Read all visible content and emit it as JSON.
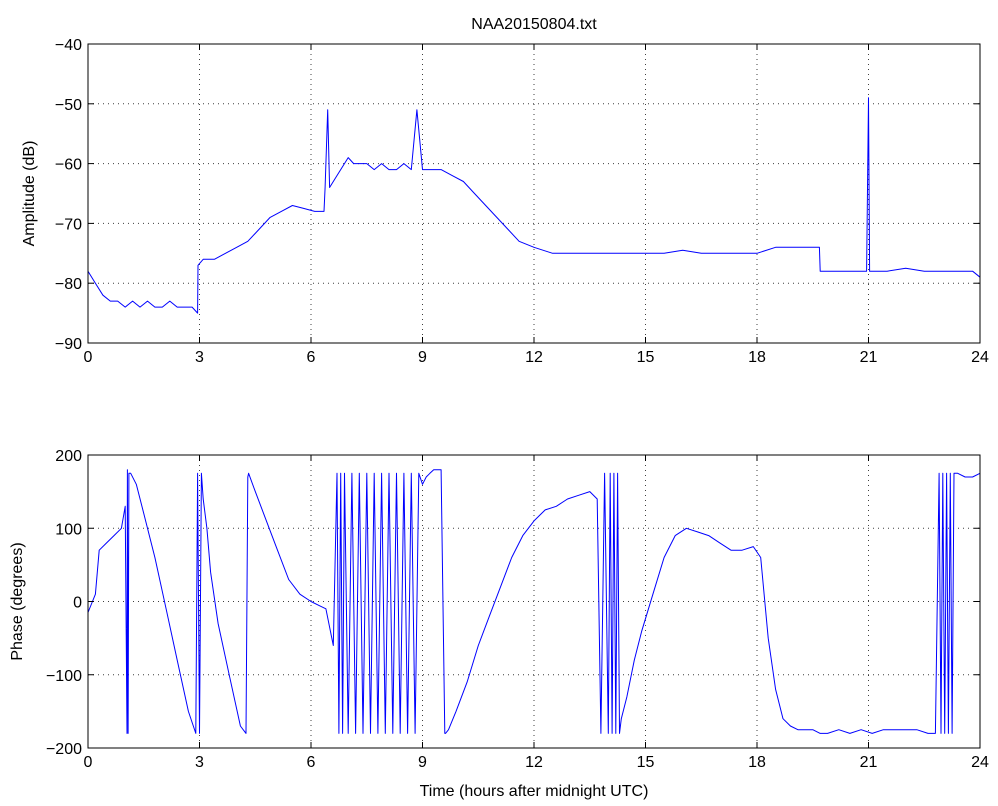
{
  "chart_data": [
    {
      "type": "line",
      "title": "NAA20150804.txt",
      "xlabel": "",
      "ylabel": "Amplitude (dB)",
      "xlim": [
        0,
        24
      ],
      "ylim": [
        -90,
        -40
      ],
      "xticks": [
        0,
        3,
        6,
        9,
        12,
        15,
        18,
        21,
        24
      ],
      "yticks": [
        -90,
        -80,
        -70,
        -60,
        -50,
        -40
      ],
      "xtick_labels": [
        "0",
        "3",
        "6",
        "9",
        "12",
        "15",
        "18",
        "21",
        "24"
      ],
      "ytick_labels": [
        "−90",
        "−80",
        "−70",
        "−60",
        "−50",
        "−40"
      ],
      "grid": true,
      "series_color": "#0000ff",
      "x": [
        0,
        0.2,
        0.4,
        0.6,
        0.8,
        1.0,
        1.2,
        1.4,
        1.6,
        1.8,
        2.0,
        2.2,
        2.4,
        2.6,
        2.8,
        2.95,
        2.96,
        3.1,
        3.4,
        3.7,
        4.0,
        4.3,
        4.6,
        4.9,
        5.2,
        5.5,
        5.8,
        6.1,
        6.35,
        6.38,
        6.45,
        6.5,
        6.6,
        6.8,
        7.0,
        7.15,
        7.3,
        7.5,
        7.7,
        7.9,
        8.1,
        8.3,
        8.5,
        8.7,
        8.85,
        9.0,
        9.2,
        9.5,
        9.8,
        10.1,
        10.4,
        10.7,
        11.0,
        11.3,
        11.6,
        12.0,
        12.5,
        13.0,
        13.5,
        14.0,
        14.5,
        15.0,
        15.5,
        16.0,
        16.5,
        17.0,
        17.5,
        18.0,
        18.5,
        19.0,
        19.5,
        19.68,
        19.7,
        20.0,
        20.5,
        20.95,
        21.0,
        21.03,
        21.1,
        21.5,
        22.0,
        22.5,
        23.0,
        23.5,
        23.8,
        24.0
      ],
      "y": [
        -78,
        -80,
        -82,
        -83,
        -83,
        -84,
        -83,
        -84,
        -83,
        -84,
        -84,
        -83,
        -84,
        -84,
        -84,
        -85,
        -77,
        -76,
        -76,
        -75,
        -74,
        -73,
        -71,
        -69,
        -68,
        -67,
        -67.5,
        -68,
        -68,
        -64,
        -51,
        -64,
        -63,
        -61,
        -59,
        -60,
        -60,
        -60,
        -61,
        -60,
        -61,
        -61,
        -60,
        -61,
        -51,
        -61,
        -61,
        -61,
        -62,
        -63,
        -65,
        -67,
        -69,
        -71,
        -73,
        -74,
        -75,
        -75,
        -75,
        -75,
        -75,
        -75,
        -75,
        -74.5,
        -75,
        -75,
        -75,
        -75,
        -74,
        -74,
        -74,
        -74,
        -78,
        -78,
        -78,
        -78,
        -49,
        -78,
        -78,
        -78,
        -77.5,
        -78,
        -78,
        -78,
        -78,
        -79
      ]
    },
    {
      "type": "line",
      "title": "",
      "xlabel": "Time (hours after midnight UTC)",
      "ylabel": "Phase (degrees)",
      "xlim": [
        0,
        24
      ],
      "ylim": [
        -200,
        200
      ],
      "xticks": [
        0,
        3,
        6,
        9,
        12,
        15,
        18,
        21,
        24
      ],
      "yticks": [
        -200,
        -100,
        0,
        100,
        200
      ],
      "xtick_labels": [
        "0",
        "3",
        "6",
        "9",
        "12",
        "15",
        "18",
        "21",
        "24"
      ],
      "ytick_labels": [
        "−200",
        "−100",
        "0",
        "100",
        "200"
      ],
      "grid": true,
      "series_color": "#0000ff",
      "x": [
        0,
        0.2,
        0.3,
        0.5,
        0.7,
        0.9,
        1.0,
        1.05,
        1.06,
        1.08,
        1.1,
        1.15,
        1.3,
        1.5,
        1.8,
        2.1,
        2.4,
        2.7,
        2.9,
        2.95,
        3.0,
        3.05,
        3.1,
        3.2,
        3.3,
        3.5,
        3.8,
        4.1,
        4.25,
        4.3,
        4.32,
        4.5,
        4.8,
        5.1,
        5.4,
        5.7,
        6.0,
        6.2,
        6.4,
        6.6,
        6.7,
        6.75,
        6.8,
        6.85,
        6.9,
        7.0,
        7.1,
        7.2,
        7.3,
        7.4,
        7.5,
        7.6,
        7.7,
        7.8,
        7.9,
        8.0,
        8.1,
        8.2,
        8.3,
        8.4,
        8.5,
        8.6,
        8.7,
        8.8,
        8.9,
        9.0,
        9.1,
        9.2,
        9.3,
        9.5,
        9.6,
        9.62,
        9.7,
        9.9,
        10.2,
        10.5,
        10.8,
        11.1,
        11.4,
        11.7,
        12.0,
        12.3,
        12.6,
        12.9,
        13.2,
        13.5,
        13.7,
        13.8,
        13.9,
        14.0,
        14.05,
        14.1,
        14.15,
        14.2,
        14.25,
        14.3,
        14.35,
        14.5,
        14.7,
        14.9,
        15.2,
        15.5,
        15.8,
        16.1,
        16.4,
        16.7,
        17.0,
        17.3,
        17.6,
        17.9,
        18.1,
        18.3,
        18.5,
        18.7,
        18.9,
        19.1,
        19.3,
        19.5,
        19.7,
        19.9,
        20.2,
        20.5,
        20.8,
        21.1,
        21.4,
        21.7,
        22.0,
        22.3,
        22.6,
        22.8,
        22.9,
        22.95,
        23.0,
        23.05,
        23.1,
        23.15,
        23.2,
        23.25,
        23.3,
        23.4,
        23.6,
        23.8,
        24.0
      ],
      "y": [
        -15,
        10,
        70,
        80,
        90,
        100,
        130,
        -180,
        180,
        -180,
        175,
        175,
        160,
        120,
        60,
        -10,
        -80,
        -150,
        -180,
        175,
        -180,
        175,
        140,
        100,
        40,
        -30,
        -100,
        -170,
        -180,
        170,
        175,
        150,
        110,
        70,
        30,
        10,
        0,
        -5,
        -10,
        -60,
        175,
        -180,
        175,
        -180,
        175,
        -180,
        175,
        -180,
        175,
        -180,
        175,
        -180,
        175,
        -180,
        175,
        -180,
        175,
        -180,
        175,
        -180,
        175,
        -180,
        175,
        -180,
        175,
        160,
        170,
        175,
        180,
        180,
        -180,
        -180,
        -175,
        -150,
        -110,
        -60,
        -20,
        20,
        60,
        90,
        110,
        125,
        130,
        140,
        145,
        150,
        140,
        -180,
        175,
        -180,
        175,
        -180,
        175,
        -180,
        175,
        -180,
        -160,
        -130,
        -80,
        -40,
        10,
        60,
        90,
        100,
        95,
        90,
        80,
        70,
        70,
        75,
        60,
        -50,
        -120,
        -160,
        -170,
        -175,
        -175,
        -175,
        -180,
        -180,
        -175,
        -180,
        -175,
        -180,
        -175,
        -175,
        -175,
        -175,
        -180,
        -180,
        175,
        -180,
        175,
        -180,
        175,
        -180,
        175,
        -180,
        175,
        175,
        170,
        170,
        175
      ]
    }
  ]
}
